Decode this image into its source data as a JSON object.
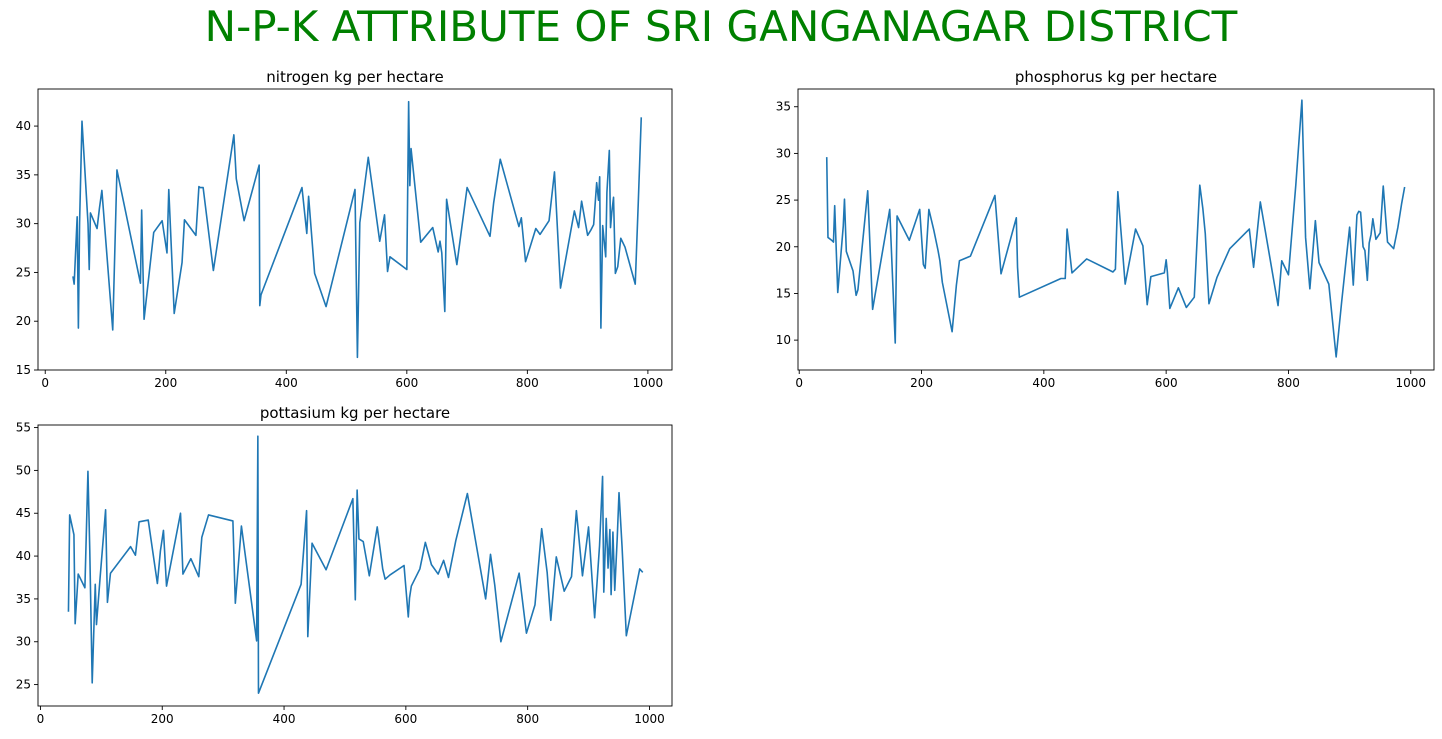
{
  "suptitle": "N-P-K ATTRIBUTE OF SRI GANGANAGAR DISTRICT",
  "colors": {
    "suptitle": "#008000",
    "line": "#1f77b4",
    "axes": "#000000"
  },
  "chart_data": [
    {
      "type": "line",
      "title": "nitrogen kg per hectare",
      "xlabel": "",
      "ylabel": "",
      "xlim": [
        -12,
        1040
      ],
      "ylim": [
        15.0,
        43.8
      ],
      "xticks": [
        0,
        200,
        400,
        600,
        800,
        1000
      ],
      "yticks": [
        15,
        20,
        25,
        30,
        35,
        40
      ],
      "grid": false,
      "series": [
        {
          "x": [
            46,
            48,
            53,
            55,
            57,
            61,
            71,
            73,
            75,
            86,
            90,
            94,
            112,
            119,
            158,
            160,
            164,
            180,
            194,
            202,
            205,
            214,
            227,
            231,
            250,
            255,
            257,
            262,
            279,
            313,
            317,
            330,
            355,
            356,
            358,
            426,
            434,
            437,
            447,
            466,
            514,
            518,
            522,
            536,
            555,
            563,
            568,
            572,
            600,
            603,
            605,
            607,
            623,
            643,
            652,
            655,
            658,
            663,
            666,
            683,
            700,
            738,
            744,
            755,
            786,
            790,
            797,
            814,
            821,
            836,
            845,
            855,
            878,
            885,
            890,
            900,
            905,
            910,
            915,
            918,
            920,
            922,
            925,
            930,
            932,
            936,
            938,
            940,
            943,
            946,
            950,
            955,
            962,
            979,
            984,
            989
          ],
          "values": [
            24.6,
            23.8,
            30.7,
            19.3,
            30.1,
            40.5,
            30.0,
            25.3,
            31.1,
            29.5,
            31.6,
            33.4,
            19.1,
            35.5,
            23.9,
            31.4,
            20.2,
            29.1,
            30.3,
            27.0,
            33.5,
            20.8,
            26.0,
            30.4,
            28.8,
            33.8,
            33.7,
            33.7,
            25.2,
            39.1,
            34.6,
            30.3,
            36.0,
            21.6,
            22.7,
            33.7,
            29.0,
            32.8,
            24.9,
            21.5,
            33.5,
            16.3,
            30.1,
            36.8,
            28.2,
            30.9,
            25.1,
            26.6,
            25.3,
            42.5,
            33.9,
            37.7,
            28.1,
            29.6,
            27.1,
            28.2,
            27.0,
            21.0,
            32.5,
            25.8,
            33.7,
            28.7,
            32.1,
            36.6,
            29.7,
            30.6,
            26.1,
            29.5,
            28.9,
            30.3,
            35.3,
            23.4,
            31.3,
            29.6,
            32.3,
            28.8,
            29.3,
            29.9,
            34.2,
            32.4,
            34.8,
            19.3,
            29.8,
            26.6,
            33.2,
            37.5,
            29.6,
            31.1,
            32.7,
            24.9,
            25.6,
            28.5,
            27.6,
            23.8,
            32.1,
            40.9
          ]
        }
      ]
    },
    {
      "type": "line",
      "title": "phosphorus kg per hectare",
      "xlabel": "",
      "ylabel": "",
      "xlim": [
        -2,
        1038
      ],
      "ylim": [
        6.8,
        36.9
      ],
      "xticks": [
        0,
        200,
        400,
        600,
        800,
        1000
      ],
      "yticks": [
        10,
        15,
        20,
        25,
        30,
        35
      ],
      "grid": false,
      "series": [
        {
          "x": [
            45,
            47,
            53,
            56,
            58,
            63,
            72,
            74,
            77,
            88,
            93,
            96,
            112,
            120,
            148,
            157,
            160,
            180,
            197,
            203,
            206,
            212,
            220,
            227,
            230,
            234,
            250,
            257,
            262,
            280,
            320,
            330,
            355,
            357,
            360,
            428,
            435,
            438,
            446,
            470,
            507,
            513,
            517,
            521,
            533,
            550,
            562,
            569,
            575,
            597,
            600,
            602,
            606,
            620,
            633,
            646,
            655,
            660,
            664,
            670,
            683,
            704,
            736,
            743,
            754,
            783,
            789,
            800,
            812,
            822,
            828,
            835,
            844,
            850,
            866,
            872,
            878,
            887,
            900,
            906,
            912,
            915,
            918,
            922,
            925,
            929,
            932,
            935,
            938,
            943,
            950,
            955,
            962,
            972,
            979,
            985,
            990
          ],
          "values": [
            29.6,
            21.0,
            20.7,
            20.5,
            24.4,
            15.1,
            22.2,
            25.1,
            19.5,
            17.4,
            14.8,
            15.4,
            26.0,
            13.3,
            24.0,
            9.7,
            23.3,
            20.7,
            24.0,
            18.1,
            17.7,
            24.0,
            21.8,
            19.6,
            18.5,
            16.2,
            10.9,
            15.9,
            18.5,
            19.0,
            25.5,
            17.1,
            23.1,
            17.8,
            14.6,
            16.6,
            16.6,
            21.9,
            17.2,
            18.7,
            17.5,
            17.3,
            17.6,
            25.9,
            16.0,
            21.9,
            20.1,
            13.8,
            16.8,
            17.2,
            18.6,
            17.3,
            13.4,
            15.6,
            13.5,
            14.6,
            26.6,
            24.1,
            21.4,
            13.9,
            16.7,
            19.8,
            21.9,
            17.8,
            24.8,
            13.7,
            18.5,
            17.0,
            26.6,
            35.7,
            21.0,
            15.5,
            22.8,
            18.3,
            16.0,
            12.1,
            8.2,
            14.1,
            22.1,
            15.9,
            23.4,
            23.8,
            23.7,
            20.0,
            19.6,
            16.4,
            20.4,
            21.3,
            23.0,
            20.8,
            21.5,
            26.5,
            20.5,
            19.8,
            22.1,
            24.6,
            26.4
          ]
        }
      ]
    },
    {
      "type": "line",
      "title": "pottasium kg per hectare",
      "xlabel": "",
      "ylabel": "",
      "xlim": [
        -4,
        1037
      ],
      "ylim": [
        22.5,
        55.3
      ],
      "xticks": [
        0,
        200,
        400,
        600,
        800,
        1000
      ],
      "yticks": [
        25,
        30,
        35,
        40,
        45,
        50,
        55
      ],
      "grid": false,
      "series": [
        {
          "x": [
            46,
            48,
            55,
            57,
            62,
            73,
            78,
            81,
            85,
            90,
            92,
            98,
            107,
            110,
            115,
            148,
            156,
            162,
            177,
            192,
            197,
            202,
            207,
            230,
            234,
            247,
            260,
            265,
            276,
            316,
            320,
            330,
            355,
            357,
            358,
            428,
            437,
            439,
            446,
            469,
            513,
            517,
            520,
            523,
            530,
            540,
            553,
            562,
            566,
            574,
            597,
            604,
            606,
            609,
            623,
            632,
            642,
            653,
            662,
            670,
            682,
            701,
            731,
            739,
            746,
            756,
            786,
            798,
            812,
            823,
            832,
            838,
            847,
            860,
            872,
            880,
            890,
            900,
            910,
            918,
            923,
            925,
            929,
            932,
            935,
            937,
            940,
            943,
            947,
            950,
            955,
            962,
            984,
            989
          ],
          "values": [
            33.5,
            44.8,
            42.5,
            32.1,
            37.9,
            36.3,
            49.9,
            40.7,
            25.2,
            36.7,
            32.0,
            37.5,
            45.4,
            34.6,
            38.0,
            41.1,
            40.1,
            44.0,
            44.2,
            36.8,
            40.6,
            43.0,
            36.5,
            45.0,
            37.9,
            39.7,
            37.6,
            42.2,
            44.8,
            44.1,
            34.5,
            43.5,
            30.1,
            54.0,
            24.0,
            36.7,
            45.3,
            30.6,
            41.5,
            38.4,
            46.7,
            34.9,
            47.7,
            42.0,
            41.7,
            37.7,
            43.4,
            38.5,
            37.3,
            37.8,
            38.9,
            32.9,
            35.1,
            36.5,
            38.5,
            41.6,
            39.0,
            37.9,
            39.5,
            37.5,
            41.8,
            47.3,
            35.0,
            40.2,
            36.6,
            30.0,
            38.0,
            31.0,
            34.3,
            43.2,
            38.1,
            32.5,
            39.9,
            35.9,
            37.6,
            45.3,
            37.7,
            43.4,
            32.8,
            41.2,
            49.3,
            35.8,
            44.4,
            38.6,
            43.1,
            35.5,
            42.8,
            36.0,
            42.0,
            47.4,
            41.1,
            30.7,
            38.5,
            38.1
          ]
        }
      ]
    }
  ]
}
